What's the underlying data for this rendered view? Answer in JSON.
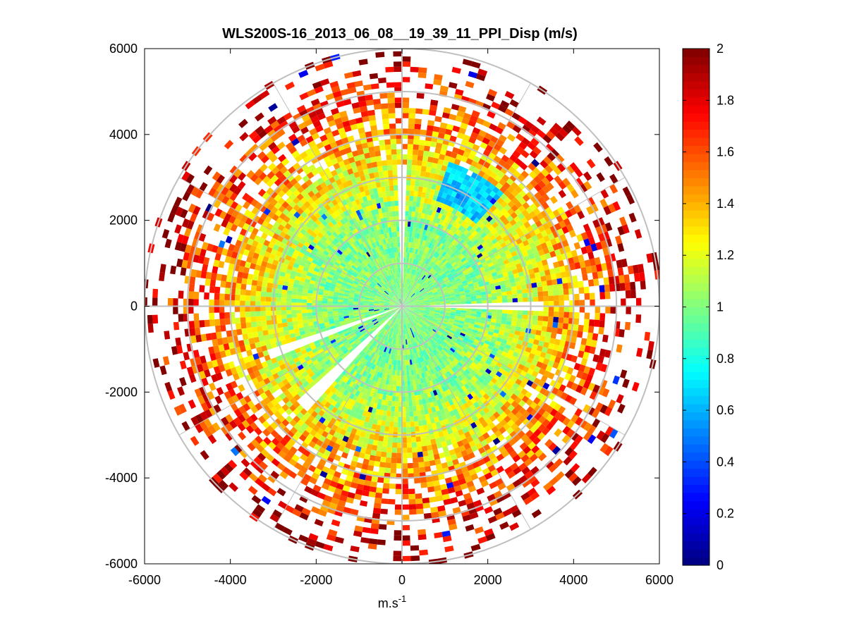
{
  "chart_data": {
    "type": "heatmap",
    "subtype": "polar-ppi-scan",
    "title": "WLS200S-16_2013_06_08__19_39_11_PPI_Disp (m/s)",
    "xlabel": "m.s",
    "xlabel_superscript": "-1",
    "ylabel": "",
    "xlim": [
      -6000,
      6000
    ],
    "ylim": [
      -6000,
      6000
    ],
    "x_ticks": [
      -6000,
      -4000,
      -2000,
      0,
      2000,
      4000,
      6000
    ],
    "y_ticks": [
      6000,
      4000,
      2000,
      0,
      -2000,
      -4000,
      -6000
    ],
    "x_tick_labels": [
      "-6000",
      "-4000",
      "-2000",
      "0",
      "2000",
      "4000",
      "6000"
    ],
    "y_tick_labels": [
      "6000",
      "4000",
      "2000",
      "0",
      "-2000",
      "-4000",
      "-6000"
    ],
    "range_rings": [
      1000,
      2000,
      3000,
      4000,
      5000,
      6000
    ],
    "spoke_angles_deg": [
      0,
      30,
      60,
      90,
      120,
      150,
      180,
      210,
      240,
      270,
      300,
      330
    ],
    "colorbar": {
      "min": 0,
      "max": 2,
      "ticks": [
        2,
        1.8,
        1.6,
        1.4,
        1.2,
        1,
        0.8,
        0.6,
        0.4,
        0.2,
        0
      ],
      "tick_labels": [
        "2",
        "1.8",
        "1.6",
        "1.4",
        "1.2",
        "1",
        "0.8",
        "0.6",
        "0.4",
        "0.2",
        "0"
      ],
      "colormap": "jet"
    },
    "field_description": {
      "inner_range_value": 1.0,
      "outer_range_value": 2.0,
      "max_data_range": 6000,
      "gap_azimuths_deg": [
        0,
        90,
        225,
        250
      ],
      "low_value_patch": {
        "azimuth_deg": 30,
        "range_min": 2500,
        "range_max": 3500,
        "value": 0.65
      },
      "noise_level": 0.25
    }
  },
  "colors": {
    "background": "#ffffff",
    "axes": "#000000",
    "grid": "#bfbfbf"
  }
}
